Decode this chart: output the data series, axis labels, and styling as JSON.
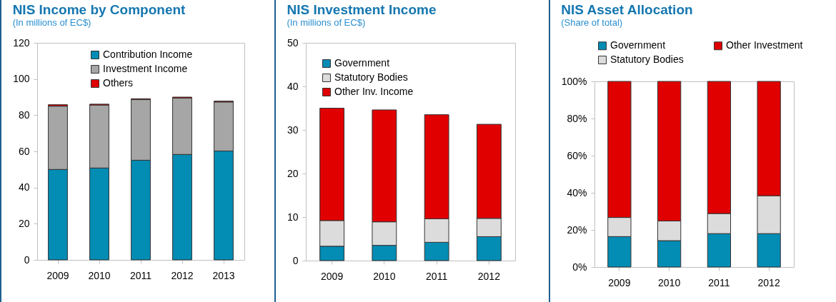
{
  "chart_data": [
    {
      "type": "bar",
      "title": "NIS Income by Component",
      "subtitle": "(In millions of EC$)",
      "categories": [
        "2009",
        "2010",
        "2011",
        "2012",
        "2013"
      ],
      "stacked": true,
      "series": [
        {
          "name": "Contribution Income",
          "color": "#038cb4",
          "values": [
            50,
            50.8,
            55.1,
            58.3,
            60.2
          ]
        },
        {
          "name": "Investment Income",
          "color": "#a6a6a6",
          "values": [
            35,
            34.8,
            33.5,
            31.2,
            27.1
          ]
        },
        {
          "name": "Others",
          "color": "#e00000",
          "values": [
            0.8,
            0.5,
            0.5,
            0.5,
            0.5
          ]
        }
      ],
      "ylim": [
        0,
        120
      ],
      "yticks": [
        0,
        20,
        40,
        60,
        80,
        100,
        120
      ],
      "grid": false,
      "legend": "top"
    },
    {
      "type": "bar",
      "title": "NIS Investment Income",
      "subtitle": "(In millions of EC$)",
      "categories": [
        "2009",
        "2010",
        "2011",
        "2012"
      ],
      "stacked": true,
      "series": [
        {
          "name": "Government",
          "color": "#038cb4",
          "values": [
            3.3,
            3.5,
            4.2,
            5.5
          ]
        },
        {
          "name": "Statutory Bodies",
          "color": "#dcdcdc",
          "values": [
            5.9,
            5.4,
            5.4,
            4.2
          ]
        },
        {
          "name": "Other Inv. Income",
          "color": "#e00000",
          "values": [
            25.8,
            25.7,
            23.9,
            21.6
          ]
        }
      ],
      "ylim": [
        0,
        50
      ],
      "yticks": [
        0,
        10,
        20,
        30,
        40,
        50
      ],
      "grid": false,
      "legend": "top left"
    },
    {
      "type": "bar",
      "title": "NIS Asset Allocation",
      "subtitle": "(Share of total)",
      "categories": [
        "2009",
        "2010",
        "2011",
        "2012"
      ],
      "stacked": true,
      "series": [
        {
          "name": "Government",
          "color": "#038cb4",
          "values": [
            16.4,
            14.2,
            18,
            18
          ]
        },
        {
          "name": "Statutory Bodies",
          "color": "#dcdcdc",
          "values": [
            10.3,
            10.6,
            10.8,
            20.4
          ]
        },
        {
          "name": "Other Investment",
          "color": "#e00000",
          "values": [
            73.3,
            75.2,
            71.2,
            61.6
          ]
        }
      ],
      "ylim": [
        0,
        100
      ],
      "yticks": [
        {
          "value": 0,
          "label": "0%"
        },
        {
          "value": 20,
          "label": "20%"
        },
        {
          "value": 40,
          "label": "40%"
        },
        {
          "value": 60,
          "label": "60%"
        },
        {
          "value": 80,
          "label": "80%"
        },
        {
          "value": 100,
          "label": "100%"
        }
      ],
      "grid": false,
      "legend": "top outside"
    }
  ]
}
